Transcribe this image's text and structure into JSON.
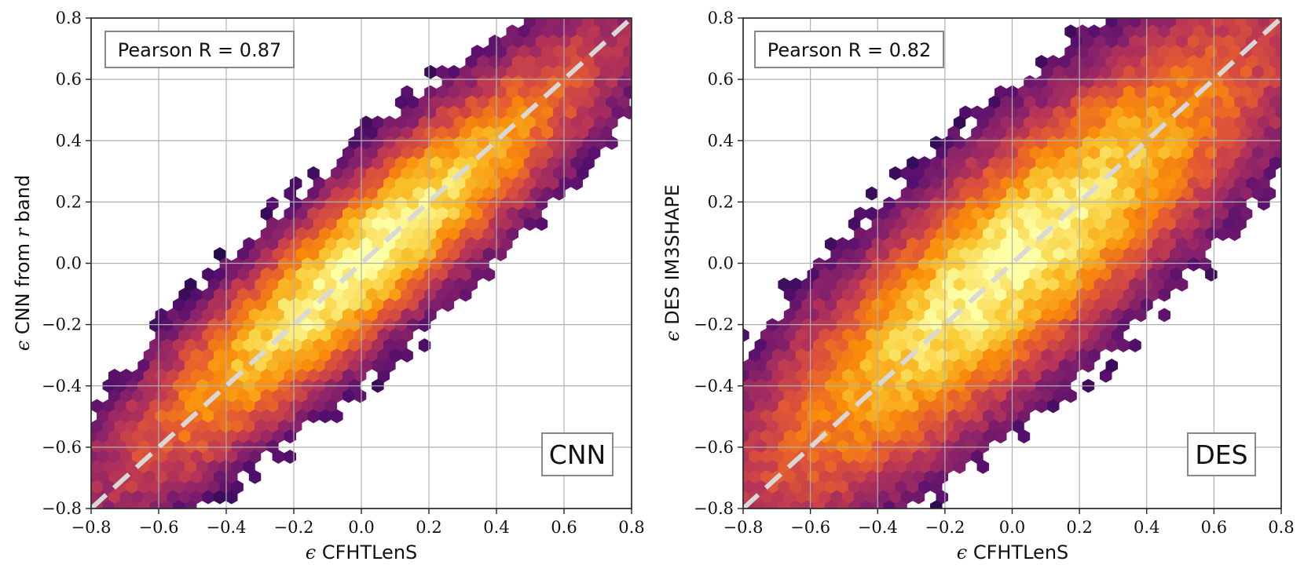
{
  "chart_data": [
    {
      "type": "hexbin",
      "panel": "left",
      "x_range": [
        -0.8,
        0.8
      ],
      "y_range": [
        -0.8,
        0.8
      ],
      "x_ticks": [
        "−0.8",
        "−0.6",
        "−0.4",
        "−0.2",
        "0.0",
        "0.2",
        "0.4",
        "0.6",
        "0.8"
      ],
      "y_ticks": [
        "−0.8",
        "−0.6",
        "−0.4",
        "−0.2",
        "0.0",
        "0.2",
        "0.4",
        "0.6",
        "0.8"
      ],
      "x_tick_values": [
        -0.8,
        -0.6,
        -0.4,
        -0.2,
        0.0,
        0.2,
        0.4,
        0.6,
        0.8
      ],
      "y_tick_values": [
        -0.8,
        -0.6,
        -0.4,
        -0.2,
        0.0,
        0.2,
        0.4,
        0.6,
        0.8
      ],
      "xlabel_symbol": "ϵ",
      "xlabel": "CFHTLenS",
      "ylabel_symbol": "ϵ",
      "ylabel_pre": "CNN from",
      "ylabel_var": "r",
      "ylabel_post": "band",
      "annotation": "Pearson R = 0.87",
      "pearson_r": 0.87,
      "tag": "CNN",
      "identity_line": [
        [
          -0.8,
          -0.8
        ],
        [
          0.8,
          0.8
        ]
      ],
      "grid": true,
      "colormap": "inferno",
      "spread": 0.095,
      "density_width": 0.45
    },
    {
      "type": "hexbin",
      "panel": "right",
      "x_range": [
        -0.8,
        0.8
      ],
      "y_range": [
        -0.8,
        0.8
      ],
      "x_ticks": [
        "−0.8",
        "−0.6",
        "−0.4",
        "−0.2",
        "0.0",
        "0.2",
        "0.4",
        "0.6",
        "0.8"
      ],
      "y_ticks": [
        "−0.8",
        "−0.6",
        "−0.4",
        "−0.2",
        "0.0",
        "0.2",
        "0.4",
        "0.6",
        "0.8"
      ],
      "x_tick_values": [
        -0.8,
        -0.6,
        -0.4,
        -0.2,
        0.0,
        0.2,
        0.4,
        0.6,
        0.8
      ],
      "y_tick_values": [
        -0.8,
        -0.6,
        -0.4,
        -0.2,
        0.0,
        0.2,
        0.4,
        0.6,
        0.8
      ],
      "xlabel_symbol": "ϵ",
      "xlabel": "CFHTLenS",
      "ylabel_symbol": "ϵ",
      "ylabel_pre": "DES IM3SHAPE",
      "ylabel_var": "",
      "ylabel_post": "",
      "annotation": "Pearson R = 0.82",
      "pearson_r": 0.82,
      "tag": "DES",
      "identity_line": [
        [
          -0.8,
          -0.8
        ],
        [
          0.8,
          0.8
        ]
      ],
      "grid": true,
      "colormap": "inferno",
      "spread": 0.135,
      "density_width": 0.5
    }
  ],
  "colors": {
    "identity_line": "#d8d8d8",
    "grid": "#b0b0b0",
    "frame": "#222222",
    "box_border": "#888888"
  }
}
